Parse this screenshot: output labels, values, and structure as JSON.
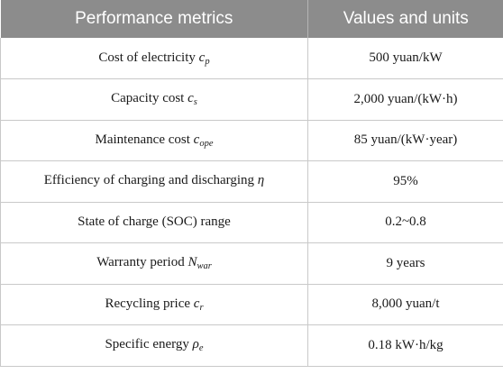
{
  "table": {
    "headers": [
      "Performance metrics",
      "Values and units"
    ],
    "rows": [
      {
        "metric": "Cost of electricity",
        "symbol": "c",
        "subscript": "p",
        "value": "500 yuan/kW"
      },
      {
        "metric": "Capacity cost",
        "symbol": "c",
        "subscript": "s",
        "value": "2,000 yuan/(kW·h)"
      },
      {
        "metric": "Maintenance cost",
        "symbol": "c",
        "subscript": "ope",
        "value": "85 yuan/(kW·year)"
      },
      {
        "metric": "Efficiency of charging and discharging",
        "symbol": "η",
        "subscript": "",
        "value": "95%"
      },
      {
        "metric": "State of charge (SOC) range",
        "symbol": "",
        "subscript": "",
        "value": "0.2~0.8"
      },
      {
        "metric": "Warranty period",
        "symbol": "N",
        "subscript": "war",
        "value": "9 years"
      },
      {
        "metric": "Recycling price",
        "symbol": "c",
        "subscript": "r",
        "value": "8,000 yuan/t"
      },
      {
        "metric": "Specific energy",
        "symbol": "ρ",
        "subscript": "e",
        "value": "0.18 kW·h/kg"
      }
    ]
  }
}
